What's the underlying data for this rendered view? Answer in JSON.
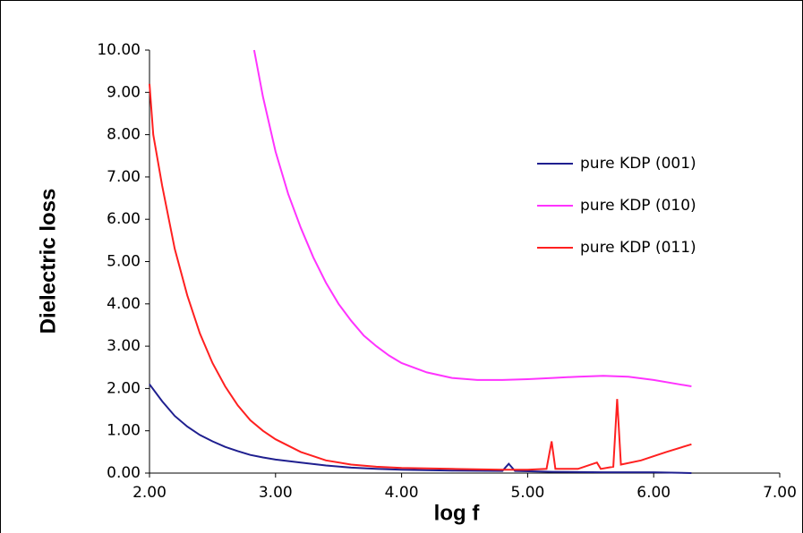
{
  "chart_data": {
    "type": "line",
    "x_label": "log f",
    "y_label": "Dielectric loss",
    "xlim": [
      2,
      7
    ],
    "ylim": [
      0,
      10
    ],
    "xticks": [
      {
        "value": 2,
        "label": "2.00"
      },
      {
        "value": 3,
        "label": "3.00"
      },
      {
        "value": 4,
        "label": "4.00"
      },
      {
        "value": 5,
        "label": "5.00"
      },
      {
        "value": 6,
        "label": "6.00"
      },
      {
        "value": 7,
        "label": "7.00"
      }
    ],
    "yticks": [
      {
        "value": 0,
        "label": "0.00"
      },
      {
        "value": 1,
        "label": "1.00"
      },
      {
        "value": 2,
        "label": "2.00"
      },
      {
        "value": 3,
        "label": "3.00"
      },
      {
        "value": 4,
        "label": "4.00"
      },
      {
        "value": 5,
        "label": "5.00"
      },
      {
        "value": 6,
        "label": "6.00"
      },
      {
        "value": 7,
        "label": "7.00"
      },
      {
        "value": 8,
        "label": "8.00"
      },
      {
        "value": 9,
        "label": "9.00"
      },
      {
        "value": 10,
        "label": "10.00"
      }
    ],
    "series": [
      {
        "name": "pure KDP (001)",
        "color": "#1f1f8f",
        "x": [
          2.0,
          2.1,
          2.2,
          2.3,
          2.4,
          2.5,
          2.6,
          2.7,
          2.8,
          2.9,
          3.0,
          3.2,
          3.4,
          3.6,
          3.8,
          4.0,
          4.4,
          4.8,
          4.85,
          4.9,
          5.2,
          5.6,
          6.0,
          6.3
        ],
        "values": [
          2.1,
          1.7,
          1.35,
          1.1,
          0.9,
          0.75,
          0.62,
          0.52,
          0.43,
          0.37,
          0.32,
          0.25,
          0.18,
          0.13,
          0.1,
          0.08,
          0.06,
          0.05,
          0.22,
          0.05,
          0.03,
          0.02,
          0.02,
          0.0
        ]
      },
      {
        "name": "pure KDP (010)",
        "color": "#ff33ff",
        "x": [
          2.83,
          2.9,
          3.0,
          3.1,
          3.2,
          3.3,
          3.4,
          3.5,
          3.6,
          3.7,
          3.8,
          3.9,
          4.0,
          4.2,
          4.4,
          4.6,
          4.8,
          5.0,
          5.2,
          5.4,
          5.6,
          5.8,
          6.0,
          6.2,
          6.3
        ],
        "values": [
          10.0,
          8.9,
          7.6,
          6.6,
          5.8,
          5.1,
          4.5,
          4.0,
          3.6,
          3.25,
          3.0,
          2.78,
          2.6,
          2.38,
          2.25,
          2.2,
          2.2,
          2.22,
          2.25,
          2.28,
          2.3,
          2.28,
          2.2,
          2.1,
          2.05
        ]
      },
      {
        "name": "pure KDP (011)",
        "color": "#ff2020",
        "x": [
          2.0,
          2.03,
          2.1,
          2.2,
          2.3,
          2.4,
          2.5,
          2.6,
          2.7,
          2.8,
          2.9,
          3.0,
          3.2,
          3.4,
          3.6,
          3.8,
          4.0,
          4.4,
          4.8,
          5.0,
          5.15,
          5.19,
          5.22,
          5.4,
          5.55,
          5.58,
          5.68,
          5.71,
          5.74,
          5.9,
          6.1,
          6.3
        ],
        "values": [
          9.2,
          8.0,
          6.8,
          5.3,
          4.2,
          3.3,
          2.6,
          2.05,
          1.6,
          1.25,
          1.0,
          0.8,
          0.5,
          0.3,
          0.2,
          0.15,
          0.12,
          0.1,
          0.08,
          0.08,
          0.1,
          0.75,
          0.1,
          0.1,
          0.25,
          0.1,
          0.15,
          1.75,
          0.2,
          0.3,
          0.5,
          0.68
        ]
      }
    ]
  }
}
